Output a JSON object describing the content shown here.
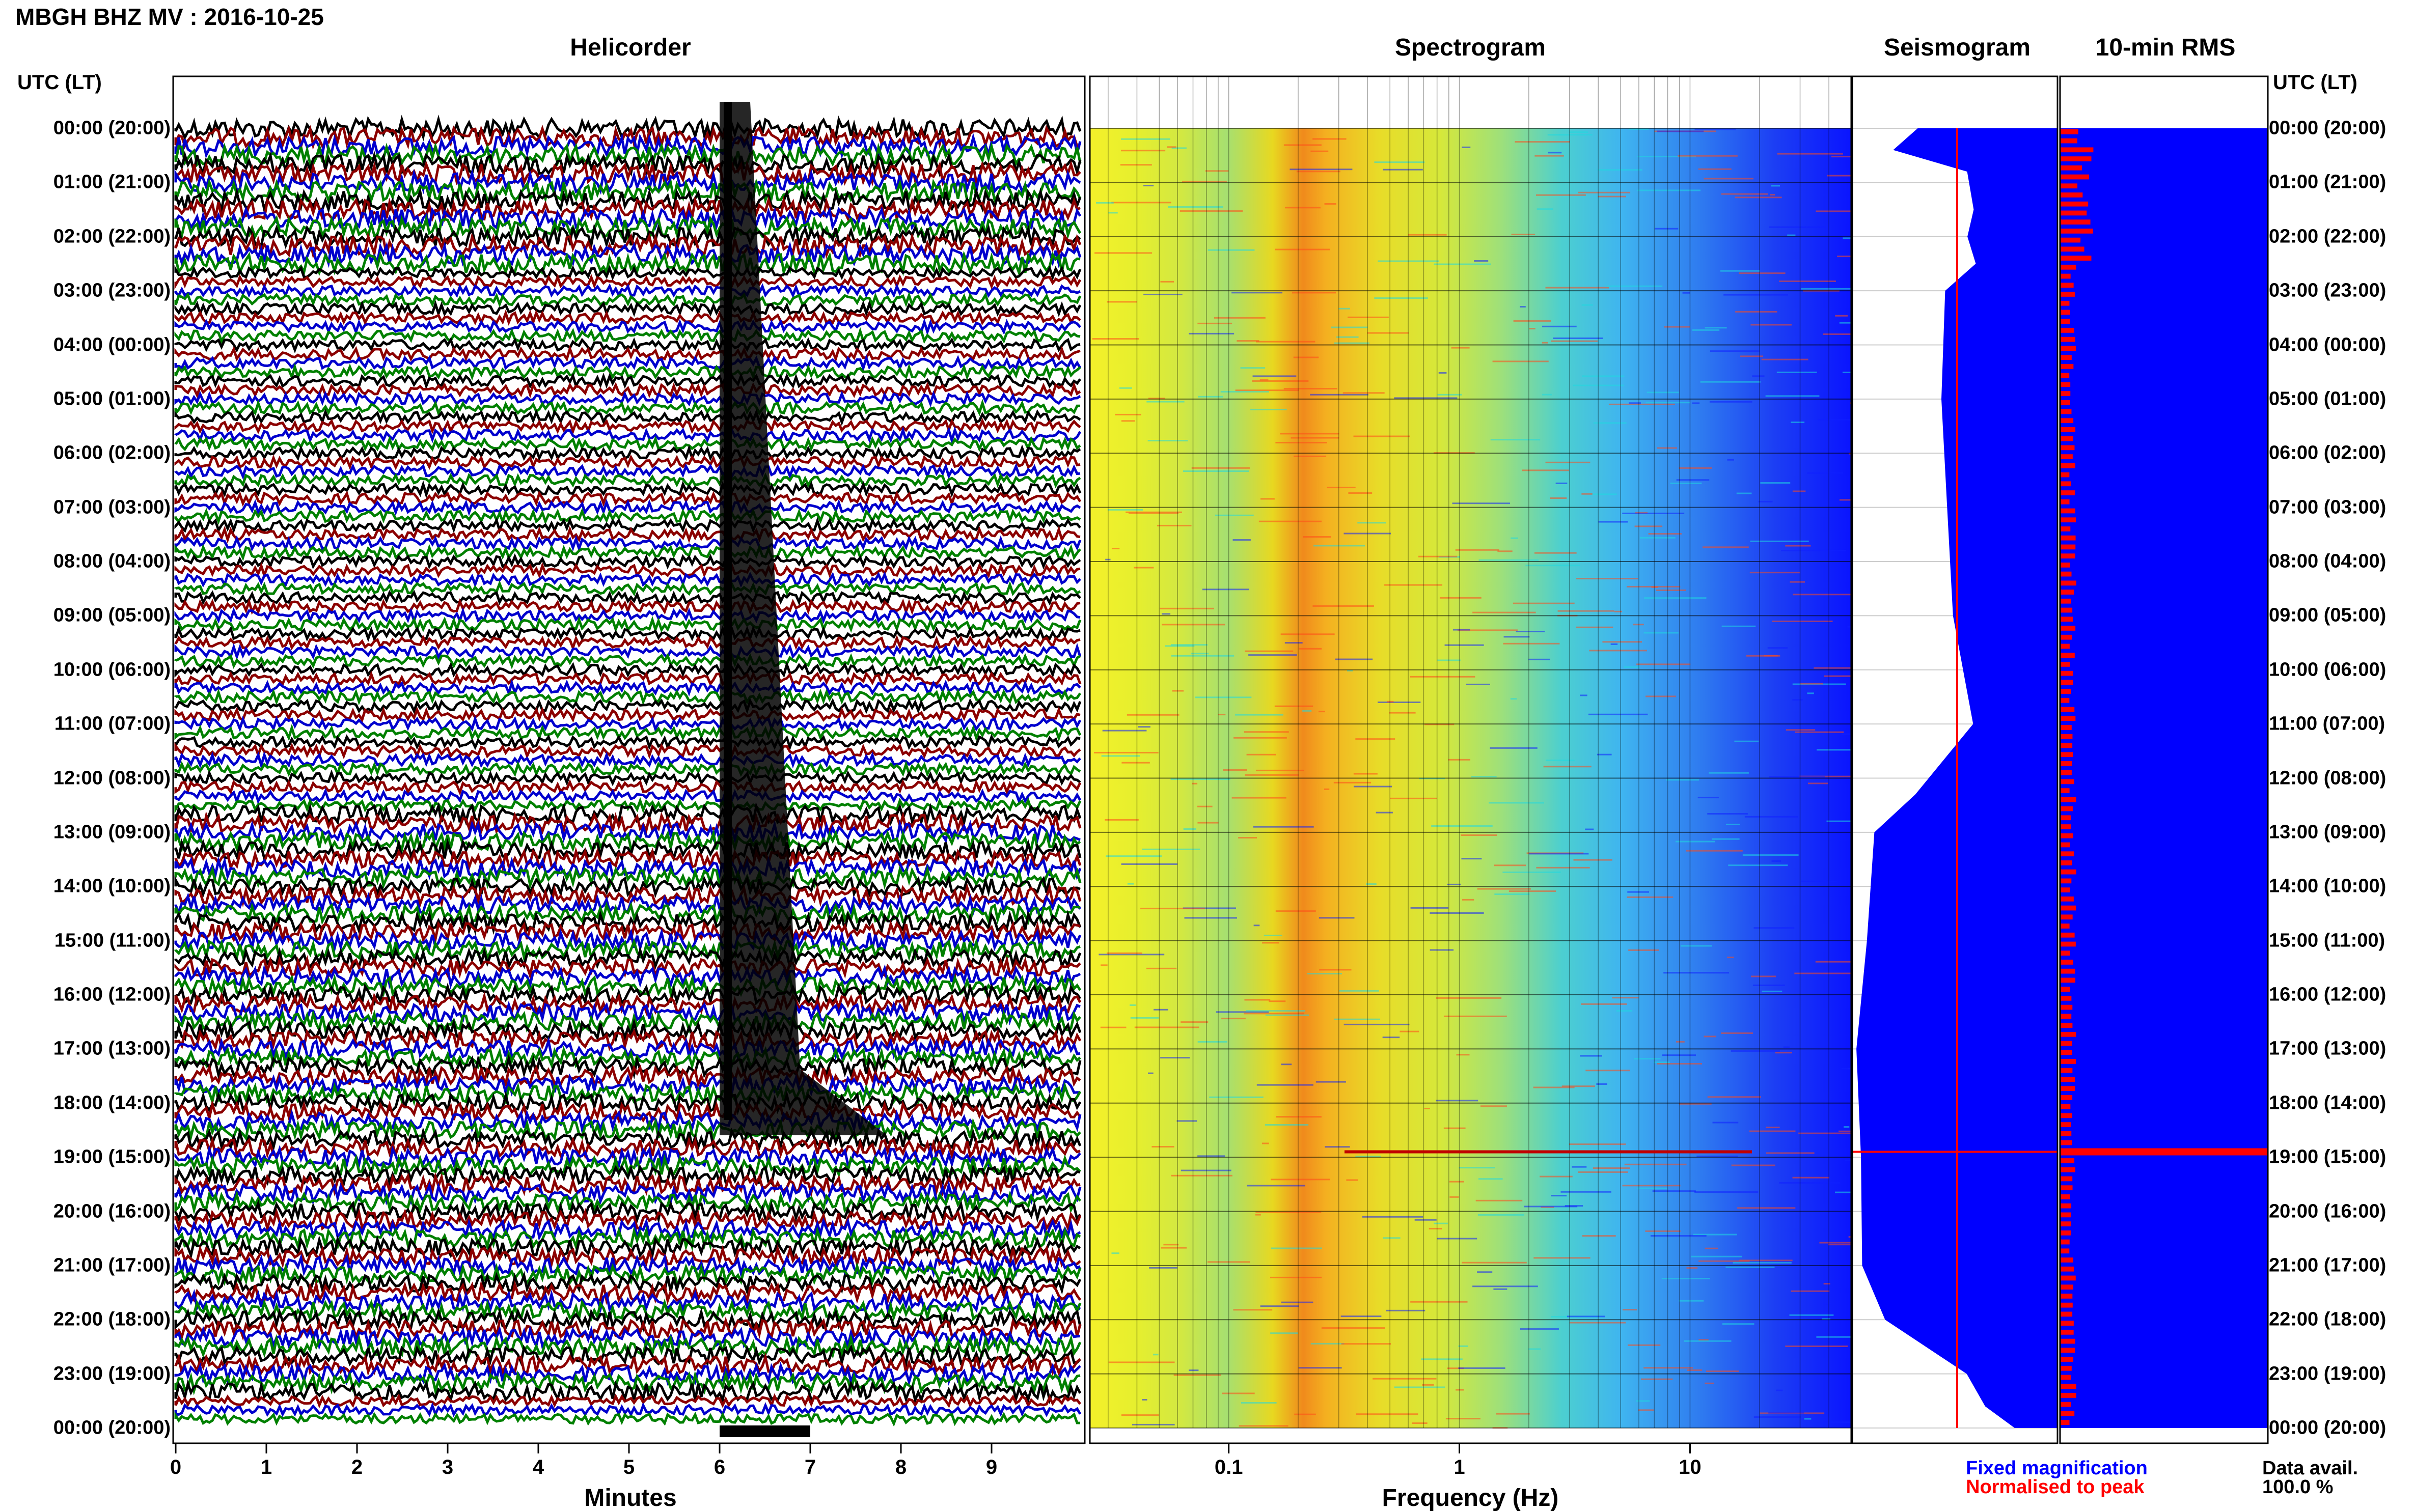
{
  "header": {
    "title": "MBGH BHZ MV : 2016-10-25"
  },
  "panels": {
    "helicorder": "Helicorder",
    "spectrogram": "Spectrogram",
    "seismogram": "Seismogram",
    "rms": "10-min RMS"
  },
  "axes": {
    "time_header": "UTC (LT)",
    "minutes_title": "Minutes",
    "frequency_title": "Frequency (Hz)"
  },
  "legend": {
    "fixed": "Fixed magnification",
    "normalised": "Normalised to peak"
  },
  "availability": {
    "label": "Data avail.",
    "value": "100.0 %"
  },
  "colors": {
    "helicorder_traces": [
      "#000000",
      "#8b0000",
      "#0000cd",
      "#008000"
    ],
    "seismogram_fill": "#0000ff",
    "normalised": "#ff0000",
    "spectrogram_low": "#0000ff",
    "spectrogram_high": "#ff0000"
  },
  "chart_data": [
    {
      "type": "line",
      "title": "Helicorder",
      "xlabel": "Minutes",
      "ylabel": "UTC (LT)",
      "x_ticks": [
        "0",
        "1",
        "2",
        "3",
        "4",
        "5",
        "6",
        "7",
        "8",
        "9"
      ],
      "xlim": [
        0,
        10
      ],
      "y_labels": [
        "00:00 (20:00)",
        "01:00 (21:00)",
        "02:00 (22:00)",
        "03:00 (23:00)",
        "04:00 (00:00)",
        "05:00 (01:00)",
        "06:00 (02:00)",
        "07:00 (03:00)",
        "08:00 (04:00)",
        "09:00 (05:00)",
        "10:00 (06:00)",
        "11:00 (07:00)",
        "12:00 (08:00)",
        "13:00 (09:00)",
        "14:00 (10:00)",
        "15:00 (11:00)",
        "16:00 (12:00)",
        "17:00 (13:00)",
        "18:00 (14:00)",
        "19:00 (15:00)",
        "20:00 (16:00)",
        "21:00 (17:00)",
        "22:00 (18:00)",
        "23:00 (19:00)",
        "00:00 (20:00)"
      ],
      "rows": 144,
      "row_minutes": 10,
      "trace_colors_cycle": [
        "black",
        "darkred",
        "blue",
        "green"
      ],
      "saturated_event_minutes": [
        6.0,
        7.0
      ]
    },
    {
      "type": "heatmap",
      "title": "Spectrogram",
      "xlabel": "Frequency (Hz)",
      "x_scale": "log",
      "x_ticks": [
        "0.1",
        "1",
        "10"
      ],
      "xlim": [
        0.025,
        50
      ],
      "y_labels": [
        "00:00 (20:00)",
        "01:00 (21:00)",
        "02:00 (22:00)",
        "03:00 (23:00)",
        "04:00 (00:00)",
        "05:00 (01:00)",
        "06:00 (02:00)",
        "07:00 (03:00)",
        "08:00 (04:00)",
        "09:00 (05:00)",
        "10:00 (06:00)",
        "11:00 (07:00)",
        "12:00 (08:00)",
        "13:00 (09:00)",
        "14:00 (10:00)",
        "15:00 (11:00)",
        "16:00 (12:00)",
        "17:00 (13:00)",
        "18:00 (14:00)",
        "19:00 (15:00)",
        "20:00 (16:00)",
        "21:00 (17:00)",
        "22:00 (18:00)",
        "23:00 (19:00)",
        "00:00 (20:00)"
      ],
      "colormap": "jet",
      "dominant_band_hz": [
        0.2,
        0.3
      ]
    },
    {
      "type": "area",
      "title": "Seismogram",
      "series": [
        {
          "name": "Fixed magnification",
          "color": "#0000ff"
        },
        {
          "name": "Normalised to peak",
          "color": "#ff0000"
        }
      ]
    },
    {
      "type": "bar",
      "title": "10-min RMS",
      "y_labels": [
        "00:00 (20:00)",
        "01:00 (21:00)",
        "02:00 (22:00)",
        "03:00 (23:00)",
        "04:00 (00:00)",
        "05:00 (01:00)",
        "06:00 (02:00)",
        "07:00 (03:00)",
        "08:00 (04:00)",
        "09:00 (05:00)",
        "10:00 (06:00)",
        "11:00 (07:00)",
        "12:00 (08:00)",
        "13:00 (09:00)",
        "14:00 (10:00)",
        "15:00 (11:00)",
        "16:00 (12:00)",
        "17:00 (13:00)",
        "18:00 (14:00)",
        "19:00 (15:00)",
        "20:00 (16:00)",
        "21:00 (17:00)",
        "22:00 (18:00)",
        "23:00 (19:00)",
        "00:00 (20:00)"
      ],
      "peak_hour_utc": 18.9
    }
  ]
}
